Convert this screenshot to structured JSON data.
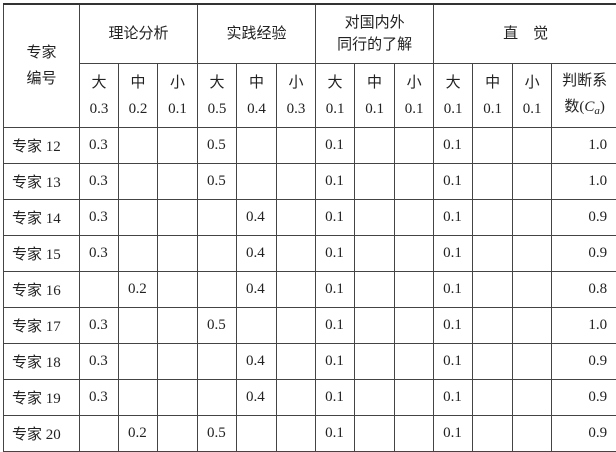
{
  "header": {
    "expert_id": "专家\n编号",
    "groups": [
      "理论分析",
      "实践经验",
      "对国内外\n同行的了解",
      "直　觉"
    ],
    "sub_levels": [
      [
        "大",
        "0.3"
      ],
      [
        "中",
        "0.2"
      ],
      [
        "小",
        "0.1"
      ],
      [
        "大",
        "0.5"
      ],
      [
        "中",
        "0.4"
      ],
      [
        "小",
        "0.3"
      ],
      [
        "大",
        "0.1"
      ],
      [
        "中",
        "0.1"
      ],
      [
        "小",
        "0.1"
      ],
      [
        "大",
        "0.1"
      ],
      [
        "中",
        "0.1"
      ],
      [
        "小",
        "0.1"
      ]
    ],
    "coef_label": "判断系\n数(",
    "coef_symbol": "C",
    "coef_subscript": "a",
    "coef_close": ")"
  },
  "rows": [
    {
      "name": "专家 12",
      "cells": [
        "0.3",
        "",
        "",
        "0.5",
        "",
        "",
        "0.1",
        "",
        "",
        "0.1",
        "",
        ""
      ],
      "coef": "1.0"
    },
    {
      "name": "专家 13",
      "cells": [
        "0.3",
        "",
        "",
        "0.5",
        "",
        "",
        "0.1",
        "",
        "",
        "0.1",
        "",
        ""
      ],
      "coef": "1.0"
    },
    {
      "name": "专家 14",
      "cells": [
        "0.3",
        "",
        "",
        "",
        "0.4",
        "",
        "0.1",
        "",
        "",
        "0.1",
        "",
        ""
      ],
      "coef": "0.9"
    },
    {
      "name": "专家 15",
      "cells": [
        "0.3",
        "",
        "",
        "",
        "0.4",
        "",
        "0.1",
        "",
        "",
        "0.1",
        "",
        ""
      ],
      "coef": "0.9"
    },
    {
      "name": "专家 16",
      "cells": [
        "",
        "0.2",
        "",
        "",
        "0.4",
        "",
        "0.1",
        "",
        "",
        "0.1",
        "",
        ""
      ],
      "coef": "0.8"
    },
    {
      "name": "专家 17",
      "cells": [
        "0.3",
        "",
        "",
        "0.5",
        "",
        "",
        "0.1",
        "",
        "",
        "0.1",
        "",
        ""
      ],
      "coef": "1.0"
    },
    {
      "name": "专家 18",
      "cells": [
        "0.3",
        "",
        "",
        "",
        "0.4",
        "",
        "0.1",
        "",
        "",
        "0.1",
        "",
        ""
      ],
      "coef": "0.9"
    },
    {
      "name": "专家 19",
      "cells": [
        "0.3",
        "",
        "",
        "",
        "0.4",
        "",
        "0.1",
        "",
        "",
        "0.1",
        "",
        ""
      ],
      "coef": "0.9"
    },
    {
      "name": "专家 20",
      "cells": [
        "",
        "0.2",
        "",
        "0.5",
        "",
        "",
        "0.1",
        "",
        "",
        "0.1",
        "",
        ""
      ],
      "coef": "0.9"
    }
  ]
}
